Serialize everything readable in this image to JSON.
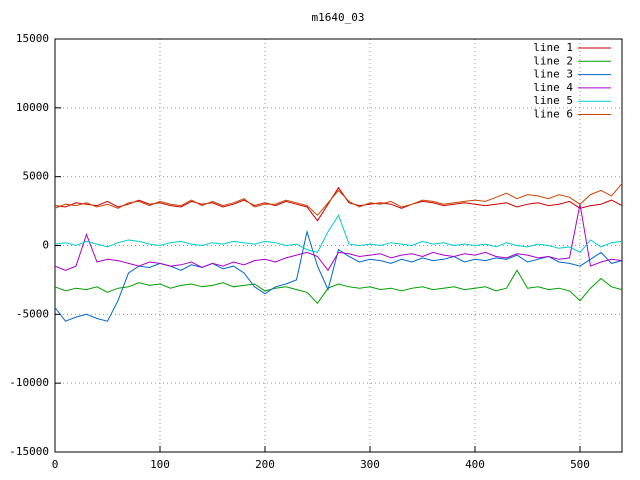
{
  "chart_data": {
    "type": "line",
    "title": "m1640_03",
    "x": [
      0,
      10,
      20,
      30,
      40,
      50,
      60,
      70,
      80,
      90,
      100,
      110,
      120,
      130,
      140,
      150,
      160,
      170,
      180,
      190,
      200,
      210,
      220,
      230,
      240,
      250,
      260,
      270,
      280,
      290,
      300,
      310,
      320,
      330,
      340,
      350,
      360,
      370,
      380,
      390,
      400,
      410,
      420,
      430,
      440,
      450,
      460,
      470,
      480,
      490,
      500,
      510,
      520,
      530,
      540
    ],
    "xlim": [
      0,
      540
    ],
    "xticks": [
      0,
      100,
      200,
      300,
      400,
      500
    ],
    "ylim": [
      -15000,
      15000
    ],
    "yticks": [
      -15000,
      -10000,
      -5000,
      0,
      5000,
      10000,
      15000
    ],
    "grid": true,
    "legend": "top-right",
    "series": [
      {
        "name": "line 1",
        "color": "#cc0000",
        "values": [
          2900,
          2800,
          3100,
          3000,
          2900,
          3200,
          2800,
          3000,
          3300,
          3000,
          3100,
          2900,
          2800,
          3200,
          3000,
          3100,
          2800,
          3000,
          3300,
          2900,
          3100,
          2900,
          3200,
          3000,
          2800,
          1800,
          3000,
          4200,
          3100,
          2900,
          3000,
          3100,
          3000,
          2700,
          3000,
          3200,
          3100,
          2900,
          3000,
          3100,
          3000,
          2900,
          3000,
          3100,
          2800,
          3000,
          3100,
          2900,
          3000,
          3200,
          2700,
          2900,
          3000,
          3300,
          2900
        ]
      },
      {
        "name": "line 2",
        "color": "#00a000",
        "values": [
          -3000,
          -3300,
          -3100,
          -3200,
          -3000,
          -3400,
          -3100,
          -3000,
          -2700,
          -2900,
          -2800,
          -3100,
          -2900,
          -2800,
          -3000,
          -2900,
          -2700,
          -3000,
          -2900,
          -2800,
          -3300,
          -3100,
          -3000,
          -3200,
          -3400,
          -4200,
          -3100,
          -2800,
          -3000,
          -3100,
          -3000,
          -3200,
          -3100,
          -3300,
          -3100,
          -3000,
          -3200,
          -3100,
          -3000,
          -3200,
          -3100,
          -3000,
          -3300,
          -3100,
          -1800,
          -3100,
          -3000,
          -3200,
          -3100,
          -3300,
          -4000,
          -3100,
          -2400,
          -3000,
          -3200
        ]
      },
      {
        "name": "line 3",
        "color": "#0066cc",
        "values": [
          -4500,
          -5500,
          -5200,
          -5000,
          -5300,
          -5500,
          -4000,
          -2000,
          -1500,
          -1600,
          -1300,
          -1500,
          -1800,
          -1400,
          -1600,
          -1300,
          -1700,
          -1500,
          -2000,
          -3000,
          -3500,
          -3000,
          -2800,
          -2500,
          1000,
          -1500,
          -3200,
          -300,
          -800,
          -1200,
          -1000,
          -1100,
          -1300,
          -1000,
          -1200,
          -900,
          -1100,
          -1000,
          -800,
          -1200,
          -1000,
          -1100,
          -900,
          -1000,
          -700,
          -1200,
          -1000,
          -800,
          -1200,
          -1300,
          -1500,
          -1000,
          -500,
          -1300,
          -1100
        ]
      },
      {
        "name": "line 4",
        "color": "#aa00cc",
        "values": [
          -1500,
          -1800,
          -1500,
          800,
          -1200,
          -1000,
          -1100,
          -1300,
          -1500,
          -1200,
          -1300,
          -1500,
          -1400,
          -1200,
          -1600,
          -1300,
          -1500,
          -1200,
          -1400,
          -1100,
          -1000,
          -1200,
          -900,
          -700,
          -500,
          -800,
          -1800,
          -500,
          -600,
          -800,
          -700,
          -600,
          -900,
          -700,
          -600,
          -800,
          -500,
          -700,
          -800,
          -600,
          -700,
          -500,
          -800,
          -900,
          -600,
          -700,
          -900,
          -800,
          -1000,
          -900,
          3000,
          -1500,
          -1200,
          -1000,
          -1100
        ]
      },
      {
        "name": "line 5",
        "color": "#00cccc",
        "values": [
          100,
          200,
          0,
          300,
          100,
          -100,
          200,
          400,
          300,
          100,
          0,
          200,
          300,
          100,
          0,
          200,
          100,
          300,
          200,
          100,
          300,
          200,
          0,
          100,
          -300,
          -500,
          1000,
          2200,
          100,
          0,
          100,
          0,
          200,
          100,
          0,
          300,
          100,
          200,
          0,
          100,
          0,
          100,
          -100,
          200,
          0,
          -100,
          100,
          0,
          -200,
          -100,
          -500,
          400,
          -100,
          200,
          300
        ]
      },
      {
        "name": "line 6",
        "color": "#cc4400",
        "values": [
          2700,
          3000,
          2900,
          3100,
          2800,
          3000,
          2700,
          3100,
          3200,
          2900,
          3200,
          3000,
          2900,
          3300,
          2900,
          3200,
          2900,
          3100,
          3400,
          2800,
          3000,
          3000,
          3300,
          3100,
          2900,
          2200,
          3100,
          4000,
          3200,
          2800,
          3100,
          3000,
          3200,
          2800,
          3000,
          3300,
          3200,
          3000,
          3100,
          3200,
          3300,
          3200,
          3500,
          3800,
          3400,
          3700,
          3600,
          3400,
          3700,
          3500,
          3000,
          3700,
          4000,
          3600,
          4500
        ]
      }
    ]
  }
}
